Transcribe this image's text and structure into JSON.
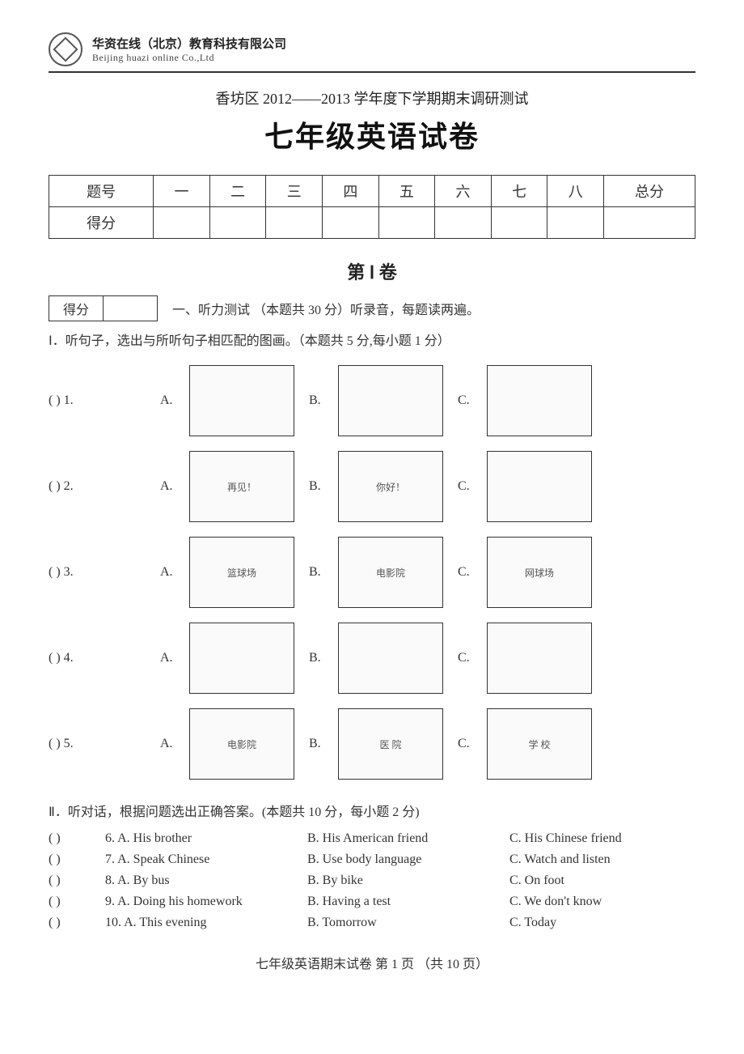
{
  "company": {
    "cn": "华资在线（北京）教育科技有限公司",
    "en": "Beijing huazi online Co.,Ltd"
  },
  "header": {
    "subtitle": "香坊区 2012——2013 学年度下学期期末调研测试",
    "title": "七年级英语试卷"
  },
  "score_table": {
    "row_label": "题号",
    "cols": [
      "一",
      "二",
      "三",
      "四",
      "五",
      "六",
      "七",
      "八",
      "总分"
    ],
    "score_label": "得分"
  },
  "section": {
    "heading": "第  Ⅰ  卷",
    "small_score_label": "得分",
    "listening_title": "一、听力测试 （本题共 30 分）听录音，每题读两遍。",
    "part1_instr": "Ⅰ．听句子，选出与所听句子相匹配的图画。（本题共 5 分,每小题 1 分）"
  },
  "picture_questions": [
    {
      "num": "1",
      "options": [
        {
          "label": "A.",
          "caption": ""
        },
        {
          "label": "B.",
          "caption": ""
        },
        {
          "label": "C.",
          "caption": ""
        }
      ]
    },
    {
      "num": "2",
      "options": [
        {
          "label": "A.",
          "caption": "再见！"
        },
        {
          "label": "B.",
          "caption": "你好！"
        },
        {
          "label": "C.",
          "caption": ""
        }
      ]
    },
    {
      "num": "3",
      "options": [
        {
          "label": "A.",
          "caption": "篮球场"
        },
        {
          "label": "B.",
          "caption": "电影院"
        },
        {
          "label": "C.",
          "caption": "网球场"
        }
      ]
    },
    {
      "num": "4",
      "options": [
        {
          "label": "A.",
          "caption": ""
        },
        {
          "label": "B.",
          "caption": ""
        },
        {
          "label": "C.",
          "caption": ""
        }
      ]
    },
    {
      "num": "5",
      "options": [
        {
          "label": "A.",
          "caption": "电影院"
        },
        {
          "label": "B.",
          "caption": "医 院"
        },
        {
          "label": "C.",
          "caption": "学 校"
        }
      ]
    }
  ],
  "part2": {
    "title": "Ⅱ．听对话，根据问题选出正确答案。(本题共 10 分，每小题 2 分)",
    "questions": [
      {
        "num": "6",
        "a": "A. His brother",
        "b": "B. His American friend",
        "c": "C. His Chinese friend"
      },
      {
        "num": "7",
        "a": "A. Speak Chinese",
        "b": "B. Use body language",
        "c": "C. Watch and listen"
      },
      {
        "num": "8",
        "a": "A. By bus",
        "b": "B. By bike",
        "c": "C. On foot"
      },
      {
        "num": "9",
        "a": "A. Doing his homework",
        "b": "B. Having a test",
        "c": "C. We don't know"
      },
      {
        "num": "10",
        "a": "A. This evening",
        "b": "B. Tomorrow",
        "c": "C. Today"
      }
    ]
  },
  "footer": "七年级英语期末试卷  第 1 页  （共 10 页）",
  "paren_left": "(",
  "paren_right": ")",
  "paren_spacer": "        "
}
